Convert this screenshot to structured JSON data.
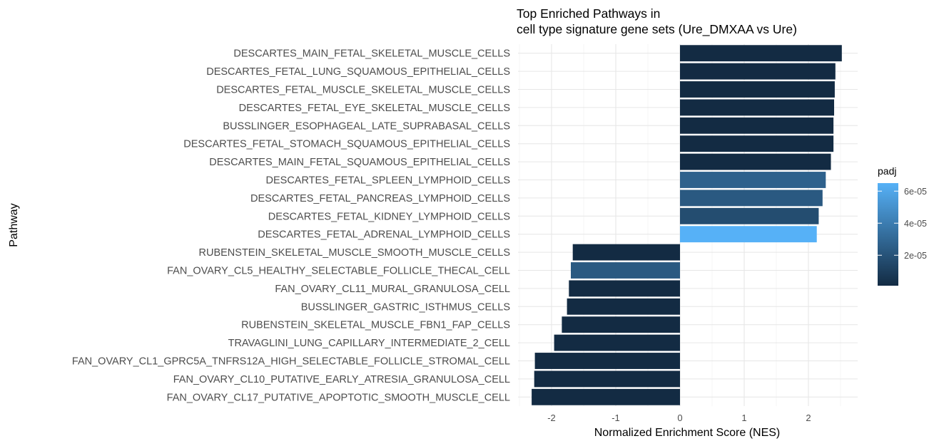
{
  "chart_data": {
    "type": "bar",
    "orientation": "horizontal",
    "title_lines": [
      "Top Enriched Pathways in",
      "cell type signature gene sets (Ure_DMXAA vs Ure)"
    ],
    "xlabel": "Normalized Enrichment Score (NES)",
    "ylabel": "Pathway",
    "xlim": [
      -2.35,
      2.75
    ],
    "x_ticks": [
      -2,
      -1,
      0,
      1,
      2
    ],
    "x_tick_labels": [
      "-2",
      "-1",
      "0",
      "1",
      "2"
    ],
    "grid": true,
    "categories": [
      "DESCARTES_MAIN_FETAL_SKELETAL_MUSCLE_CELLS",
      "DESCARTES_FETAL_LUNG_SQUAMOUS_EPITHELIAL_CELLS",
      "DESCARTES_FETAL_MUSCLE_SKELETAL_MUSCLE_CELLS",
      "DESCARTES_FETAL_EYE_SKELETAL_MUSCLE_CELLS",
      "BUSSLINGER_ESOPHAGEAL_LATE_SUPRABASAL_CELLS",
      "DESCARTES_FETAL_STOMACH_SQUAMOUS_EPITHELIAL_CELLS",
      "DESCARTES_MAIN_FETAL_SQUAMOUS_EPITHELIAL_CELLS",
      "DESCARTES_FETAL_SPLEEN_LYMPHOID_CELLS",
      "DESCARTES_FETAL_PANCREAS_LYMPHOID_CELLS",
      "DESCARTES_FETAL_KIDNEY_LYMPHOID_CELLS",
      "DESCARTES_FETAL_ADRENAL_LYMPHOID_CELLS",
      "RUBENSTEIN_SKELETAL_MUSCLE_SMOOTH_MUSCLE_CELLS",
      "FAN_OVARY_CL5_HEALTHY_SELECTABLE_FOLLICLE_THECAL_CELL",
      "FAN_OVARY_CL11_MURAL_GRANULOSA_CELL",
      "BUSSLINGER_GASTRIC_ISTHMUS_CELLS",
      "RUBENSTEIN_SKELETAL_MUSCLE_FBN1_FAP_CELLS",
      "TRAVAGLINI_LUNG_CAPILLARY_INTERMEDIATE_2_CELL",
      "FAN_OVARY_CL1_GPRC5A_TNFRS12A_HIGH_SELECTABLE_FOLLICLE_STROMAL_CELL",
      "FAN_OVARY_CL10_PUTATIVE_EARLY_ATRESIA_GRANULOSA_CELL",
      "FAN_OVARY_CL17_PUTATIVE_APOPTOTIC_SMOOTH_MUSCLE_CELL"
    ],
    "values": [
      2.52,
      2.42,
      2.41,
      2.4,
      2.39,
      2.39,
      2.35,
      2.27,
      2.22,
      2.16,
      2.13,
      -1.67,
      -1.7,
      -1.73,
      -1.76,
      -1.84,
      -1.96,
      -2.26,
      -2.27,
      -2.31
    ],
    "padj": [
      1e-06,
      1e-06,
      1e-06,
      1e-06,
      1e-06,
      1e-06,
      1e-06,
      2.7e-05,
      2.3e-05,
      1.7e-05,
      6.5e-05,
      1e-06,
      2.3e-05,
      1e-06,
      1e-06,
      1e-06,
      1e-06,
      1e-06,
      1e-06,
      1e-06
    ],
    "legend": {
      "title": "padj",
      "position": "right",
      "range": [
        1e-06,
        6.5e-05
      ],
      "ticks": [
        2e-05,
        4e-05,
        6e-05
      ],
      "tick_labels": [
        "2e-05",
        "4e-05",
        "6e-05"
      ],
      "color_low": "#132B43",
      "color_high": "#56B1F7"
    }
  }
}
